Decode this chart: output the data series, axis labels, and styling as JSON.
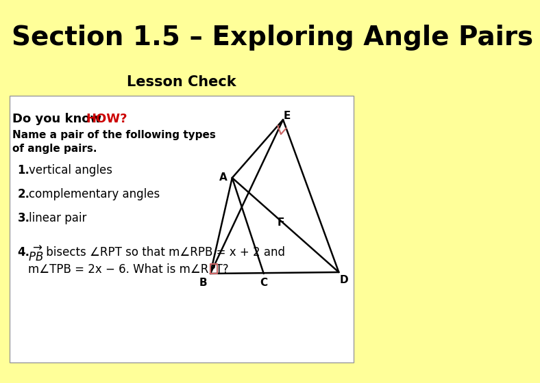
{
  "background_color": "#FFFF99",
  "title": "Section 1.5 – Exploring Angle Pairs",
  "subtitle": "Lesson Check",
  "title_fontsize": 28,
  "subtitle_fontsize": 15,
  "box_bg": "#FFFFFF",
  "how_color": "#CC0000",
  "right_angle_color": "#CC6666",
  "items": [
    "vertical angles",
    "complementary angles",
    "linear pair"
  ]
}
